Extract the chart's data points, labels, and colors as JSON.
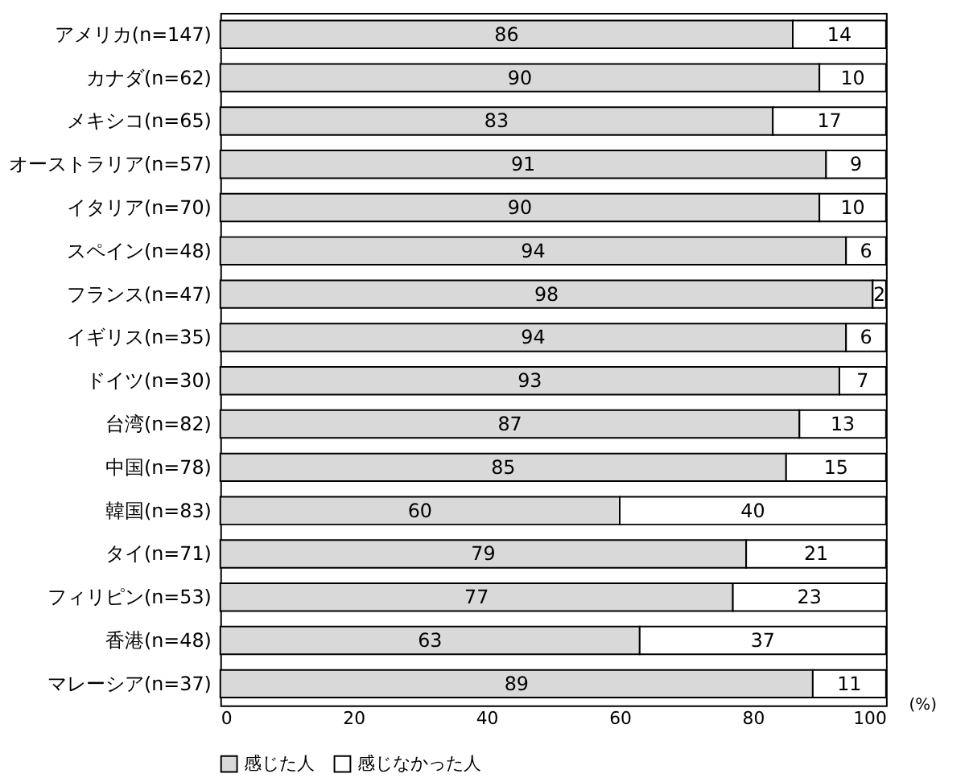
{
  "chart_data": {
    "type": "bar",
    "orientation": "horizontal",
    "stacked": true,
    "xlabel": "(%)",
    "categories": [
      "アメリカ(n=147)",
      "カナダ(n=62)",
      "メキシコ(n=65)",
      "オーストラリア(n=57)",
      "イタリア(n=70)",
      "スペイン(n=48)",
      "フランス(n=47)",
      "イギリス(n=35)",
      "ドイツ(n=30)",
      "台湾(n=82)",
      "中国(n=78)",
      "韓国(n=83)",
      "タイ(n=71)",
      "フィリピン(n=53)",
      "香港(n=48)",
      "マレーシア(n=37)"
    ],
    "series": [
      {
        "name": "感じた人",
        "color": "#d9d9d9",
        "values": [
          86,
          90,
          83,
          91,
          90,
          94,
          98,
          94,
          93,
          87,
          85,
          60,
          79,
          77,
          63,
          89
        ]
      },
      {
        "name": "感じなかった人",
        "color": "#ffffff",
        "values": [
          14,
          10,
          17,
          9,
          10,
          6,
          2,
          6,
          7,
          13,
          15,
          40,
          21,
          23,
          37,
          11
        ]
      }
    ],
    "xlim": [
      0,
      100
    ],
    "xticks": [
      0,
      20,
      40,
      60,
      80,
      100
    ],
    "grid": false,
    "legend": "bottom",
    "data_labels": true
  }
}
